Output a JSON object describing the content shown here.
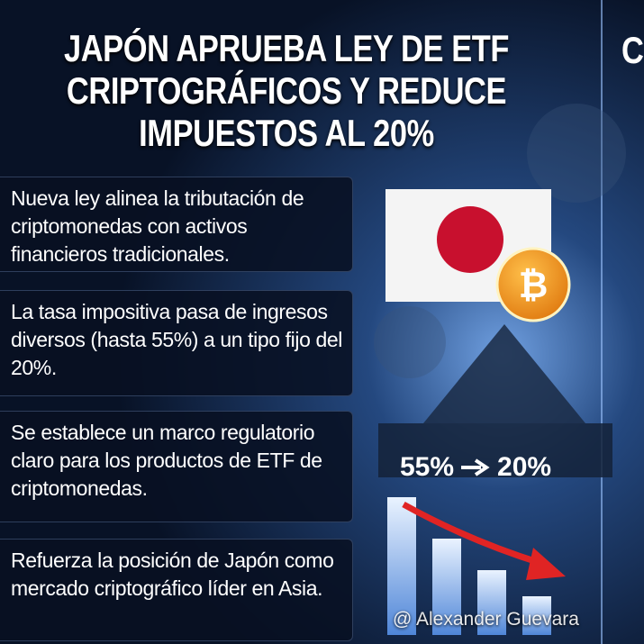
{
  "header": {
    "title_lines": [
      "JAPÓN APRUEBA LEY DE ETF",
      "CRIPTOGRÁFICOS Y REDUCE",
      "IMPUESTOS AL 20%"
    ],
    "corner_text": "C"
  },
  "points": [
    "Nueva ley alinea la tributación de criptomonedas con activos financieros tradicionales.",
    "La tasa impositiva pasa de ingresos diversos (hasta 55%) a un tipo fijo del 20%.",
    "Se establece un marco regulatorio claro para los productos de ETF de criptomonedas.",
    "Refuerza la posición de Japón como mercado criptográfico líder en Asia."
  ],
  "rate_change": {
    "from": "55%",
    "to": "20%"
  },
  "watermark": "@ Alexander Guevara"
}
